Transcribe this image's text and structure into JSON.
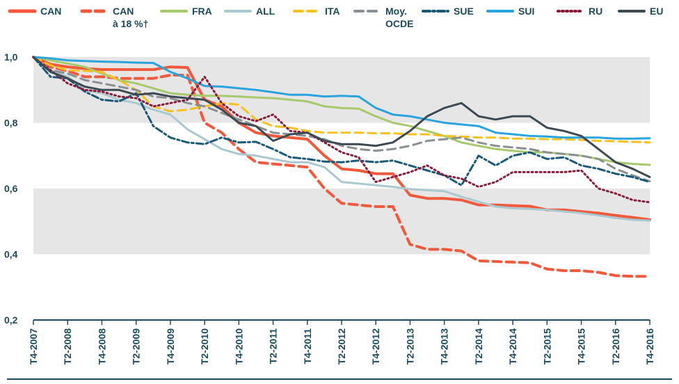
{
  "chart_data": {
    "type": "line",
    "title": "",
    "xlabel": "",
    "ylabel": "",
    "ylim": [
      0.2,
      1.0
    ],
    "yticks": [
      "0,2",
      "0,4",
      "0,6",
      "0,8",
      "1,0"
    ],
    "ytick_values": [
      0.2,
      0.4,
      0.6,
      0.8,
      1.0
    ],
    "xtick_labels": [
      "T4-2007",
      "T2-2008",
      "T4-2008",
      "T2-2009",
      "T4-2009",
      "T2-2010",
      "T4-2010",
      "T2-2011",
      "T4-2011",
      "T2-2012",
      "T4-2012",
      "T2-2013",
      "T4-2013",
      "T2-2014",
      "T4-2014",
      "T2-2015",
      "T4-2015",
      "T2-2016",
      "T4-2016"
    ],
    "grid": "alternating horizontal bands",
    "legend_position": "top",
    "series": [
      {
        "name": "CAN",
        "legend_lines": [
          "CAN"
        ],
        "color": "#f05a3c",
        "dash": "solid",
        "width": 4,
        "values": [
          1.0,
          0.978,
          0.97,
          0.965,
          0.962,
          0.962,
          0.962,
          0.962,
          0.97,
          0.968,
          0.87,
          0.85,
          0.8,
          0.77,
          0.76,
          0.755,
          0.75,
          0.7,
          0.66,
          0.655,
          0.645,
          0.645,
          0.58,
          0.57,
          0.57,
          0.565,
          0.55,
          0.55,
          0.548,
          0.546,
          0.535,
          0.535,
          0.53,
          0.525,
          0.518,
          0.512,
          0.505
        ]
      },
      {
        "name": "CAN à 18 %†",
        "legend_lines": [
          "CAN",
          "à 18 %†"
        ],
        "color": "#f05a3c",
        "dash": "dashed",
        "width": 4,
        "values": [
          1.0,
          0.97,
          0.958,
          0.94,
          0.94,
          0.935,
          0.935,
          0.935,
          0.945,
          0.945,
          0.8,
          0.77,
          0.72,
          0.68,
          0.675,
          0.67,
          0.665,
          0.6,
          0.555,
          0.55,
          0.545,
          0.545,
          0.43,
          0.415,
          0.415,
          0.41,
          0.38,
          0.378,
          0.376,
          0.374,
          0.355,
          0.35,
          0.35,
          0.345,
          0.335,
          0.333,
          0.333
        ]
      },
      {
        "name": "FRA",
        "legend_lines": [
          "FRA"
        ],
        "color": "#a6c96a",
        "dash": "solid",
        "width": 3,
        "values": [
          1.0,
          0.99,
          0.98,
          0.97,
          0.95,
          0.93,
          0.92,
          0.905,
          0.89,
          0.885,
          0.882,
          0.882,
          0.88,
          0.877,
          0.875,
          0.87,
          0.865,
          0.85,
          0.845,
          0.843,
          0.82,
          0.8,
          0.79,
          0.775,
          0.76,
          0.74,
          0.73,
          0.72,
          0.715,
          0.71,
          0.71,
          0.705,
          0.7,
          0.69,
          0.68,
          0.675,
          0.672
        ]
      },
      {
        "name": "ALL",
        "legend_lines": [
          "ALL"
        ],
        "color": "#a9c8cf",
        "dash": "solid",
        "width": 3,
        "values": [
          1.0,
          0.96,
          0.94,
          0.9,
          0.89,
          0.87,
          0.86,
          0.84,
          0.825,
          0.78,
          0.75,
          0.72,
          0.705,
          0.7,
          0.69,
          0.68,
          0.68,
          0.665,
          0.62,
          0.615,
          0.61,
          0.605,
          0.598,
          0.595,
          0.592,
          0.575,
          0.56,
          0.545,
          0.54,
          0.538,
          0.535,
          0.53,
          0.525,
          0.518,
          0.51,
          0.505,
          0.502
        ]
      },
      {
        "name": "ITA",
        "legend_lines": [
          "ITA"
        ],
        "color": "#f8c020",
        "dash": "dashed",
        "width": 3,
        "values": [
          1.0,
          0.975,
          0.96,
          0.958,
          0.955,
          0.93,
          0.9,
          0.85,
          0.835,
          0.84,
          0.85,
          0.86,
          0.855,
          0.81,
          0.79,
          0.785,
          0.775,
          0.77,
          0.77,
          0.77,
          0.768,
          0.768,
          0.765,
          0.765,
          0.76,
          0.758,
          0.755,
          0.755,
          0.752,
          0.752,
          0.75,
          0.75,
          0.748,
          0.745,
          0.744,
          0.742,
          0.74
        ]
      },
      {
        "name": "Moy. OCDE",
        "legend_lines": [
          "Moy.",
          "OCDE"
        ],
        "color": "#8a8f93",
        "dash": "dashed",
        "width": 3,
        "values": [
          1.0,
          0.96,
          0.95,
          0.93,
          0.92,
          0.91,
          0.9,
          0.88,
          0.875,
          0.86,
          0.85,
          0.83,
          0.81,
          0.79,
          0.77,
          0.765,
          0.76,
          0.75,
          0.73,
          0.72,
          0.715,
          0.72,
          0.73,
          0.745,
          0.75,
          0.755,
          0.74,
          0.73,
          0.725,
          0.72,
          0.71,
          0.705,
          0.7,
          0.69,
          0.66,
          0.64,
          0.622
        ]
      },
      {
        "name": "SUE",
        "legend_lines": [
          "SUE"
        ],
        "color": "#1a5a78",
        "dash": "dash-dot",
        "width": 3,
        "values": [
          1.0,
          0.94,
          0.935,
          0.895,
          0.87,
          0.865,
          0.89,
          0.79,
          0.755,
          0.74,
          0.735,
          0.755,
          0.74,
          0.742,
          0.72,
          0.695,
          0.69,
          0.682,
          0.68,
          0.685,
          0.68,
          0.685,
          0.67,
          0.655,
          0.64,
          0.61,
          0.7,
          0.67,
          0.7,
          0.71,
          0.69,
          0.695,
          0.67,
          0.66,
          0.645,
          0.635,
          0.62
        ]
      },
      {
        "name": "SUI",
        "legend_lines": [
          "SUI"
        ],
        "color": "#2aa4dc",
        "dash": "solid",
        "width": 3,
        "values": [
          1.0,
          0.996,
          0.99,
          0.988,
          0.986,
          0.985,
          0.983,
          0.982,
          0.955,
          0.935,
          0.912,
          0.91,
          0.905,
          0.9,
          0.893,
          0.885,
          0.885,
          0.88,
          0.882,
          0.88,
          0.845,
          0.825,
          0.82,
          0.81,
          0.8,
          0.795,
          0.79,
          0.77,
          0.765,
          0.76,
          0.758,
          0.755,
          0.755,
          0.755,
          0.752,
          0.752,
          0.753
        ]
      },
      {
        "name": "RU",
        "legend_lines": [
          "RU"
        ],
        "color": "#8a1a3a",
        "dash": "dotted",
        "width": 3,
        "values": [
          1.0,
          0.96,
          0.92,
          0.9,
          0.895,
          0.88,
          0.875,
          0.85,
          0.86,
          0.87,
          0.94,
          0.86,
          0.82,
          0.805,
          0.825,
          0.775,
          0.77,
          0.74,
          0.71,
          0.695,
          0.62,
          0.635,
          0.65,
          0.67,
          0.64,
          0.63,
          0.605,
          0.62,
          0.65,
          0.65,
          0.65,
          0.65,
          0.655,
          0.6,
          0.585,
          0.565,
          0.558
        ]
      },
      {
        "name": "EU",
        "legend_lines": [
          "EU"
        ],
        "color": "#3c4a54",
        "dash": "solid",
        "width": 3,
        "values": [
          1.0,
          0.955,
          0.935,
          0.91,
          0.9,
          0.9,
          0.885,
          0.89,
          0.88,
          0.875,
          0.87,
          0.84,
          0.8,
          0.79,
          0.745,
          0.765,
          0.77,
          0.745,
          0.735,
          0.735,
          0.73,
          0.74,
          0.775,
          0.82,
          0.845,
          0.86,
          0.82,
          0.81,
          0.82,
          0.82,
          0.785,
          0.775,
          0.76,
          0.72,
          0.68,
          0.66,
          0.635
        ]
      }
    ]
  }
}
